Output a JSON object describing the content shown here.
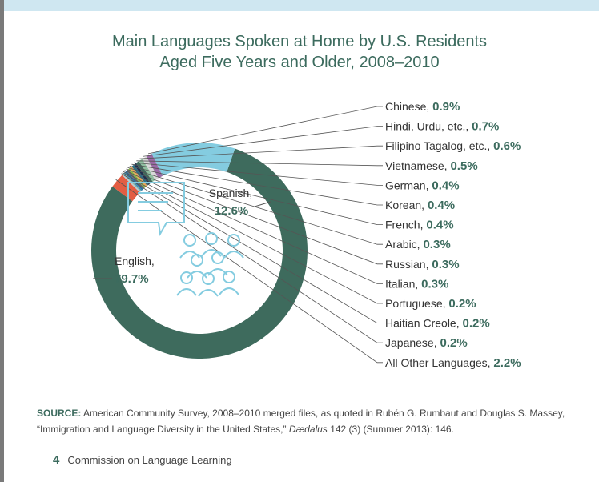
{
  "title_line1": "Main Languages Spoken at Home by U.S. Residents",
  "title_line2": "Aged Five Years and Older, 2008–2010",
  "chart_data": {
    "type": "pie",
    "slices": [
      {
        "label": "English",
        "value": 79.7,
        "display": "79.7%",
        "color": "#3e6b5d"
      },
      {
        "label": "All Other Languages",
        "value": 2.2,
        "display": "2.2%",
        "color": "#e35d43"
      },
      {
        "label": "Japanese",
        "value": 0.2,
        "display": "0.2%",
        "color": "#b8ced6"
      },
      {
        "label": "Haitian Creole",
        "value": 0.2,
        "display": "0.2%",
        "color": "#8fb3a4"
      },
      {
        "label": "Portuguese",
        "value": 0.2,
        "display": "0.2%",
        "color": "#3f8fb3"
      },
      {
        "label": "Italian",
        "value": 0.3,
        "display": "0.3%",
        "color": "#2a6fa1"
      },
      {
        "label": "Russian",
        "value": 0.3,
        "display": "0.3%",
        "color": "#6a6a6a"
      },
      {
        "label": "Arabic",
        "value": 0.3,
        "display": "0.3%",
        "color": "#8ab848"
      },
      {
        "label": "French",
        "value": 0.4,
        "display": "0.4%",
        "color": "#e7a85a"
      },
      {
        "label": "Korean",
        "value": 0.4,
        "display": "0.4%",
        "color": "#2e6d83"
      },
      {
        "label": "German",
        "value": 0.4,
        "display": "0.4%",
        "color": "#1f2f4c"
      },
      {
        "label": "Vietnamese",
        "value": 0.5,
        "display": "0.5%",
        "color": "#3e6b5d"
      },
      {
        "label": "Filipino Tagalog, etc.",
        "value": 0.6,
        "display": "0.6%",
        "color": "#8fbf9f"
      },
      {
        "label": "Hindi, Urdu, etc.",
        "value": 0.7,
        "display": "0.7%",
        "color": "#d8d8d8"
      },
      {
        "label": "Chinese",
        "value": 0.9,
        "display": "0.9%",
        "color": "#9b6aa6"
      },
      {
        "label": "Spanish",
        "value": 12.6,
        "display": "12.6%",
        "color": "#84cce0"
      }
    ],
    "legend_order": [
      "Chinese",
      "Hindi, Urdu, etc.",
      "Filipino Tagalog, etc.",
      "Vietnamese",
      "German",
      "Korean",
      "French",
      "Arabic",
      "Russian",
      "Italian",
      "Portuguese",
      "Haitian Creole",
      "Japanese",
      "All Other Languages"
    ],
    "inner_labels": {
      "english_name": "English,",
      "english_value": "79.7%",
      "spanish_name": "Spanish,",
      "spanish_value": "12.6%"
    },
    "legend_placement": "right"
  },
  "source_label": "SOURCE:",
  "source_text": " American Community Survey, 2008–2010 merged files, as quoted in Rubén G. Rumbaut and Douglas S. Massey, “Immigration and Language Diversity in the United States,” ",
  "source_journal": "Dædalus",
  "source_tail": " 142 (3) (Summer 2013): 146.",
  "footer_page": "4",
  "footer_text": "Commission on Language Learning"
}
